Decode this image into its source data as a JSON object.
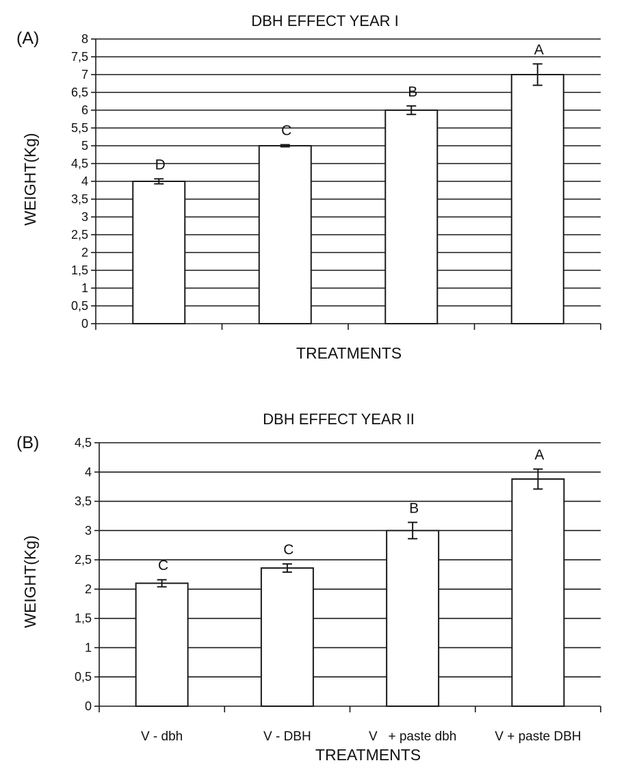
{
  "chart_data": [
    {
      "type": "bar",
      "panel_label": "(A)",
      "title": "DBH EFFECT YEAR I",
      "xlabel": "TREATMENTS",
      "ylabel": "WEIGHT(Kg)",
      "ylim": [
        0,
        8
      ],
      "ytick_step": 0.5,
      "ytick_labels": [
        "0",
        "0,5",
        "1",
        "1,5",
        "2",
        "2,5",
        "3",
        "3,5",
        "4",
        "4,5",
        "5",
        "5,5",
        "6",
        "6,5",
        "7",
        "7,5",
        "8"
      ],
      "grid": true,
      "categories": [
        "",
        "",
        "",
        ""
      ],
      "values": [
        4.0,
        5.0,
        6.0,
        7.0
      ],
      "errors": [
        0.07,
        0.03,
        0.12,
        0.3
      ],
      "significance": [
        "D",
        "C",
        "B",
        "A"
      ]
    },
    {
      "type": "bar",
      "panel_label": "(B)",
      "title": "DBH EFFECT YEAR II",
      "xlabel": "TREATMENTS",
      "ylabel": "WEIGHT(Kg)",
      "ylim": [
        0,
        4.5
      ],
      "ytick_step": 0.5,
      "ytick_labels": [
        "0",
        "0,5",
        "1",
        "1,5",
        "2",
        "2,5",
        "3",
        "3,5",
        "4",
        "4,5"
      ],
      "grid": true,
      "categories": [
        "V - dbh",
        "V - DBH",
        "V   + paste dbh",
        "V + paste DBH"
      ],
      "values": [
        2.1,
        2.36,
        3.0,
        3.88
      ],
      "errors": [
        0.06,
        0.07,
        0.14,
        0.17
      ],
      "significance": [
        "C",
        "C",
        "B",
        "A"
      ]
    }
  ]
}
